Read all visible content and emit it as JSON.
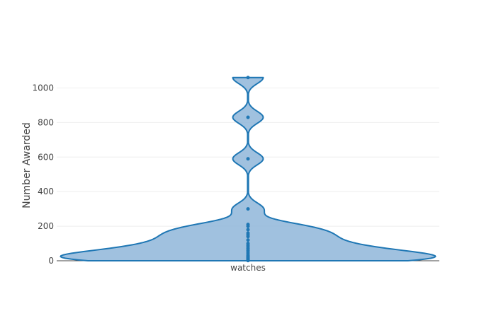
{
  "chart_data": {
    "type": "violin",
    "title": "",
    "xlabel": "",
    "ylabel": "Number Awarded",
    "categories": [
      "watches"
    ],
    "ylim": [
      0,
      1100
    ],
    "yticks": [
      0,
      200,
      400,
      600,
      800,
      1000
    ],
    "grid": true,
    "legend": "none",
    "series": [
      {
        "category": "watches",
        "points": [
          1,
          2,
          3,
          5,
          8,
          10,
          15,
          20,
          25,
          30,
          40,
          50,
          60,
          70,
          80,
          90,
          100,
          120,
          140,
          150,
          160,
          180,
          200,
          210,
          300,
          590,
          830,
          1060
        ],
        "color": "#1f77b4",
        "fill": "#8fb6d9"
      }
    ]
  }
}
